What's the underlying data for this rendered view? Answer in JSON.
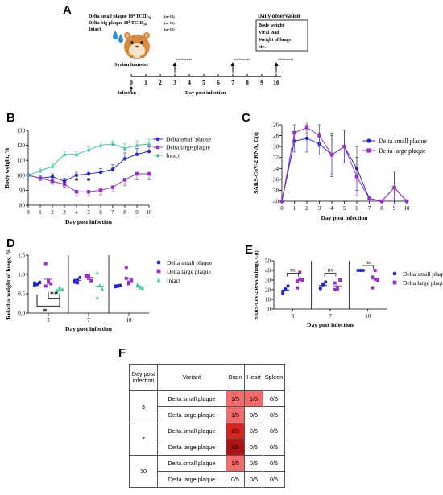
{
  "panels": {
    "A": "A",
    "B": "B",
    "C": "C",
    "D": "D",
    "E": "E",
    "F": "F"
  },
  "chart_data": [
    {
      "id": "A",
      "type": "diagram",
      "groups": [
        {
          "label": "Delta small plaque 10",
          "exp": "4",
          "unit": " TCID",
          "sub": "50",
          "n": "(n=15)"
        },
        {
          "label": "Delta big plaque 10",
          "exp": "4",
          "unit": " TCID",
          "sub": "50",
          "n": "(n=15)"
        },
        {
          "label": "Intact",
          "exp": "",
          "unit": "",
          "sub": "",
          "n": "(n=15)"
        }
      ],
      "animal": "Syrian hamster",
      "daily_title": "Daily observation",
      "daily_items": [
        "Body weight",
        "Viral load",
        "Weight of lungs",
        "etc."
      ],
      "timeline": [
        0,
        1,
        2,
        3,
        4,
        5,
        6,
        7,
        8,
        9,
        10
      ],
      "euthanasia_days": [
        3,
        7,
        10
      ],
      "euthanasia_label": "euthanasia",
      "infection_label": "Infection",
      "xlabel": "Day post infection"
    },
    {
      "id": "B",
      "type": "line",
      "x": [
        0,
        1,
        2,
        3,
        4,
        5,
        6,
        7,
        8,
        9,
        10
      ],
      "xlabel": "Day post infection",
      "ylabel": "Body weight, %",
      "ylim": [
        80,
        130
      ],
      "yticks": [
        80,
        90,
        100,
        110,
        120,
        130
      ],
      "series": [
        {
          "name": "Delta small plaque",
          "color": "#2323d6",
          "marker": "circle",
          "values": [
            100,
            98,
            99,
            96,
            100,
            101,
            102,
            104,
            111,
            114,
            116
          ],
          "err": [
            0,
            1.5,
            2,
            2,
            2,
            2,
            2.5,
            3,
            4,
            4,
            3
          ]
        },
        {
          "name": "Delta large plaque",
          "color": "#9b30c9",
          "marker": "square",
          "values": [
            100,
            98,
            96,
            94,
            89,
            89,
            90,
            92,
            97,
            101,
            101
          ],
          "err": [
            0,
            1.5,
            2,
            2,
            3,
            3,
            3,
            3,
            4,
            4,
            4
          ]
        },
        {
          "name": "Intact",
          "color": "#3ec8a0",
          "marker": "triangle",
          "values": [
            100,
            103,
            106,
            114,
            114,
            117,
            120,
            121,
            118,
            120,
            121
          ],
          "err": [
            0,
            1.5,
            2,
            2,
            2,
            2,
            2,
            2,
            3,
            3,
            3
          ]
        }
      ],
      "annotations": [
        {
          "x": 4,
          "text": "*"
        },
        {
          "x": 5,
          "text": "*"
        }
      ]
    },
    {
      "id": "C",
      "type": "line",
      "x": [
        0,
        1,
        2,
        3,
        4,
        5,
        6,
        7,
        8,
        9,
        10
      ],
      "xlabel": "Day post infection",
      "ylabel": "SARS-CoV-2 RNA, C(t)",
      "ylim": [
        40,
        26
      ],
      "yticks": [
        26,
        28,
        30,
        32,
        34,
        36,
        38,
        40
      ],
      "series": [
        {
          "name": "Delta small plaque",
          "color": "#2323d6",
          "marker": "circle",
          "values": [
            40,
            29,
            28.5,
            29.5,
            31.5,
            30,
            34,
            39.5,
            40,
            37.5,
            40
          ],
          "err": [
            0,
            2,
            2.5,
            2,
            4,
            3,
            4,
            0.5,
            0,
            3,
            0
          ]
        },
        {
          "name": "Delta large plaque",
          "color": "#9b30c9",
          "marker": "square",
          "values": [
            40,
            27.5,
            26.5,
            28,
            31.5,
            30,
            35.5,
            39.5,
            40,
            37.5,
            40
          ],
          "err": [
            0,
            1.5,
            1,
            2,
            3.5,
            3,
            3.5,
            0.5,
            0,
            3,
            0
          ]
        }
      ]
    },
    {
      "id": "D",
      "type": "scatter",
      "categories": [
        "3",
        "7",
        "10"
      ],
      "xlabel": "Day post infection",
      "ylabel": "Relative weight of lungs, %",
      "ylim": [
        0,
        1.5
      ],
      "yticks": [
        0.0,
        0.5,
        1.0,
        1.5
      ],
      "series": [
        {
          "name": "Delta small plaque",
          "color": "#2323d6",
          "marker": "circle",
          "groups": [
            [
              0.72,
              0.76,
              0.8,
              0.78,
              0.74
            ],
            [
              0.8,
              0.86,
              0.92,
              0.84,
              0.78
            ],
            [
              0.68,
              0.71,
              0.72,
              0.7,
              0.69
            ]
          ]
        },
        {
          "name": "Delta large plaque",
          "color": "#9b30c9",
          "marker": "square",
          "groups": [
            [
              1.28,
              0.84,
              0.76,
              0.7,
              0.8
            ],
            [
              0.98,
              0.9,
              0.84,
              0.94,
              0.96
            ],
            [
              1.18,
              0.8,
              0.84,
              0.9,
              0.76
            ]
          ]
        },
        {
          "name": "Intact",
          "color": "#3ec8a0",
          "marker": "triangle",
          "groups": [
            [
              0.55,
              0.6,
              0.62,
              0.58,
              0.66
            ],
            [
              1.05,
              0.72,
              0.62,
              0.4,
              0.7
            ],
            [
              0.7,
              0.66,
              0.64,
              0.74,
              0.68
            ]
          ]
        }
      ],
      "annotations": [
        "*",
        "**"
      ]
    },
    {
      "id": "E",
      "type": "scatter",
      "categories": [
        "3",
        "7",
        "10"
      ],
      "xlabel": "Day post infection",
      "ylabel": "SARS-CoV-2 RNA in lungs, C(t)",
      "ylim": [
        0,
        50
      ],
      "yticks": [
        0,
        10,
        20,
        30,
        40,
        50
      ],
      "series": [
        {
          "name": "Delta small plaque",
          "color": "#2323d6",
          "marker": "circle",
          "groups": [
            [
              18,
              21,
              24,
              16,
              20
            ],
            [
              22,
              25,
              28,
              21,
              26
            ],
            [
              40,
              40,
              40,
              40,
              40
            ]
          ]
        },
        {
          "name": "Delta large plaque",
          "color": "#9b30c9",
          "marker": "square",
          "groups": [
            [
              29,
              38,
              30,
              22,
              31
            ],
            [
              27,
              21,
              30,
              20,
              22
            ],
            [
              33,
              40,
              30,
              22,
              31
            ]
          ]
        }
      ],
      "annotations": [
        "ns",
        "ns",
        "ns"
      ]
    },
    {
      "id": "F",
      "type": "table",
      "headers": [
        "Day post infection",
        "Variant",
        "Brain",
        "Heart",
        "Spleen"
      ],
      "rows": [
        {
          "day": "3",
          "variant": "Delta small plaque",
          "brain": "1/5",
          "heart": "1/5",
          "spleen": "0/5"
        },
        {
          "day": "",
          "variant": "Delta large plaque",
          "brain": "1/5",
          "heart": "0/5",
          "spleen": "0/5"
        },
        {
          "day": "7",
          "variant": "Delta small plaque",
          "brain": "2/5",
          "heart": "0/5",
          "spleen": "0/5"
        },
        {
          "day": "",
          "variant": "Delta large plaque",
          "brain": "3/5",
          "heart": "0/5",
          "spleen": "0/5"
        },
        {
          "day": "10",
          "variant": "Delta small plaque",
          "brain": "1/5",
          "heart": "0/5",
          "spleen": "0/5"
        },
        {
          "day": "",
          "variant": "Delta large plaque",
          "brain": "0/5",
          "heart": "0/5",
          "spleen": "0/5"
        }
      ]
    }
  ]
}
